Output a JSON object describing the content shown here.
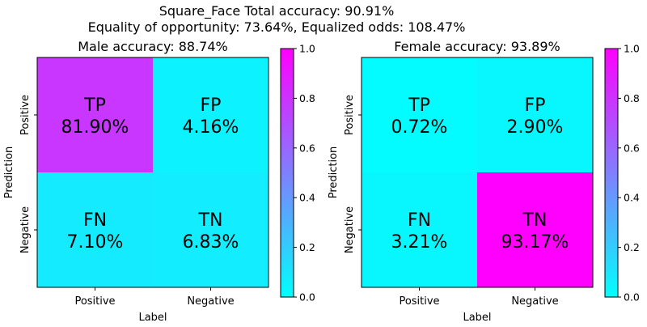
{
  "title_lines": [
    "Square_Face   Total accuracy: 90.91%",
    "Equality of opportunity: 73.64%, Equalized odds: 108.47%"
  ],
  "colormap": {
    "name": "cool",
    "low": "#00ffff",
    "high": "#ff00ff"
  },
  "chart_data": [
    {
      "type": "heatmap",
      "title": "Male accuracy: 88.74%",
      "xlabel": "Label",
      "ylabel": "Prediction",
      "x_ticks": [
        "Positive",
        "Negative"
      ],
      "y_ticks": [
        "Positive",
        "Negative"
      ],
      "colorbar_ticks": [
        "0.0",
        "0.2",
        "0.4",
        "0.6",
        "0.8",
        "1.0"
      ],
      "colorbar_range": [
        0,
        1
      ],
      "cells": [
        {
          "label": "TP",
          "value_text": "81.90%",
          "color_value": 0.79
        },
        {
          "label": "FP",
          "value_text": "4.16%",
          "color_value": 0.05
        },
        {
          "label": "FN",
          "value_text": "7.10%",
          "color_value": 0.08
        },
        {
          "label": "TN",
          "value_text": "6.83%",
          "color_value": 0.07
        }
      ]
    },
    {
      "type": "heatmap",
      "title": "Female accuracy: 93.89%",
      "xlabel": "Label",
      "ylabel": "Prediction",
      "x_ticks": [
        "Positive",
        "Negative"
      ],
      "y_ticks": [
        "Positive",
        "Negative"
      ],
      "colorbar_ticks": [
        "0.0",
        "0.2",
        "0.4",
        "0.6",
        "0.8",
        "1.0"
      ],
      "colorbar_range": [
        0,
        1
      ],
      "cells": [
        {
          "label": "TP",
          "value_text": "0.72%",
          "color_value": 0.01
        },
        {
          "label": "FP",
          "value_text": "2.90%",
          "color_value": 0.03
        },
        {
          "label": "FN",
          "value_text": "3.21%",
          "color_value": 0.03
        },
        {
          "label": "TN",
          "value_text": "93.17%",
          "color_value": 1.0
        }
      ]
    }
  ]
}
